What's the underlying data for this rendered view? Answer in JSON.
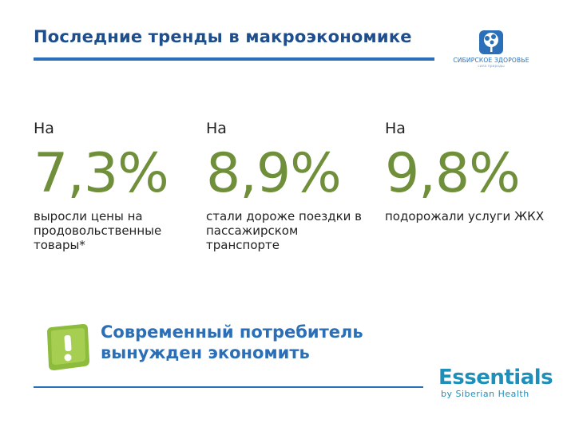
{
  "header": {
    "title": "Последние тренды в макроэкономике",
    "brand_logo_text": "СИБИРСКОЕ ЗДОРОВЬЕ",
    "brand_logo_sub": "сила природы"
  },
  "stats": [
    {
      "prefix": "На",
      "value": "7,3%",
      "description": "выросли цены на продовольственные товары*"
    },
    {
      "prefix": "На",
      "value": "8,9%",
      "description": "стали дороже поездки в пассажирском транспорте"
    },
    {
      "prefix": "На",
      "value": "9,8%",
      "description": "подорожали услуги ЖКХ"
    }
  ],
  "callout": {
    "line1": "Современный потребитель",
    "line2": "вынужден экономить",
    "icon": "exclamation-icon"
  },
  "footer": {
    "brand": "Essentials",
    "brand_sub": "by Siberian Health"
  },
  "colors": {
    "title": "#1f4e8c",
    "accent_blue": "#2a6fb7",
    "accent_green": "#6f8f3a",
    "essentials": "#1e8fb8"
  }
}
